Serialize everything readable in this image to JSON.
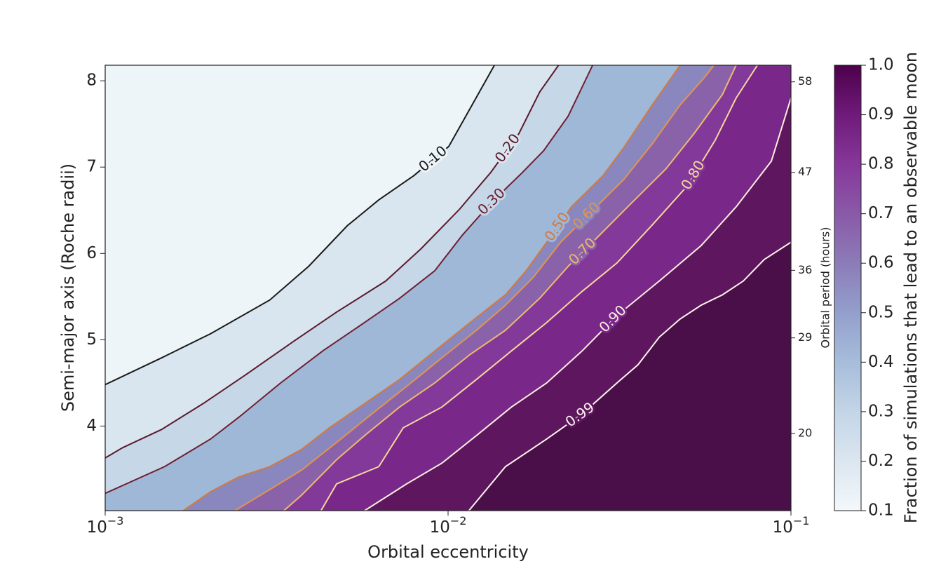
{
  "chart_data": {
    "type": "contour",
    "x_label": "Orbital eccentricity",
    "y_label": "Semi-major axis (Roche radii)",
    "y2_label": "Orbital period (hours)",
    "colorbar_label": "Fraction of simulations that lead to an observable moon",
    "xscale": "log",
    "xlim": [
      0.001,
      0.1
    ],
    "xticks": [
      {
        "value": 0.001,
        "label": "10",
        "exponent": "−3"
      },
      {
        "value": 0.01,
        "label": "10",
        "exponent": "−2"
      },
      {
        "value": 0.1,
        "label": "10",
        "exponent": "−1"
      }
    ],
    "ylim": [
      3.02,
      8.18
    ],
    "yticks": [
      4,
      5,
      6,
      7,
      8
    ],
    "y2scale_exponent": 1.5,
    "y2lim": [
      13.6,
      60.1
    ],
    "y2ticks": [
      20,
      29,
      36,
      47,
      58
    ],
    "colorbar_lim": [
      0.1,
      1
    ],
    "colorbar_ticks": [
      0.1,
      0.2,
      0.3,
      0.4,
      0.5,
      0.6,
      0.7,
      0.8,
      0.9,
      {
        "value": 1,
        "label": "1.0"
      }
    ],
    "colormap": [
      "#f3f8fb",
      "#dbe6f0",
      "#c3d5e7",
      "#a6bddb",
      "#939fcc",
      "#8c7cb8",
      "#8a59a8",
      "#86379a",
      "#6f1b7a",
      "#4d004b"
    ],
    "fill_colors": [
      "#eef5f9",
      "#dae6ef",
      "#c6d7e8",
      "#a0b8d8",
      "#8a87bf",
      "#8a62aa",
      "#82399a",
      "#79288a",
      "#5e175e",
      "#4a0e48"
    ],
    "series": [
      {
        "name": "0.10",
        "color": "#1a1a1a",
        "x": [
          0.001,
          0.00146,
          0.00203,
          0.00302,
          0.00392,
          0.00508,
          0.00628,
          0.00794,
          0.01005,
          0.01365
        ],
        "y": [
          4.48,
          4.79,
          5.07,
          5.46,
          5.85,
          6.32,
          6.62,
          6.9,
          7.24,
          8.18
        ]
      },
      {
        "name": "0.20",
        "color": "#5a1a2a",
        "x": [
          0.001,
          0.001125,
          0.00146,
          0.00193,
          0.00256,
          0.00357,
          0.00473,
          0.00658,
          0.00832,
          0.01079,
          0.01333,
          0.0161,
          0.0185,
          0.021
        ],
        "y": [
          3.63,
          3.75,
          3.96,
          4.26,
          4.59,
          4.99,
          5.32,
          5.68,
          6.05,
          6.51,
          6.94,
          7.39,
          7.87,
          8.18
        ]
      },
      {
        "name": "0.30",
        "color": "#6e1f2f",
        "x": [
          0.001,
          0.00149,
          0.00203,
          0.00245,
          0.00325,
          0.00431,
          0.00571,
          0.00722,
          0.00915,
          0.011,
          0.0133,
          0.0165,
          0.019,
          0.0224,
          0.0264
        ],
        "y": [
          3.22,
          3.53,
          3.85,
          4.1,
          4.5,
          4.87,
          5.2,
          5.48,
          5.8,
          6.21,
          6.58,
          6.94,
          7.19,
          7.59,
          8.18
        ]
      },
      {
        "name": "0.50",
        "color": "#d2793e",
        "x": [
          0.00169,
          0.00203,
          0.00245,
          0.00302,
          0.00374,
          0.00451,
          0.00571,
          0.00722,
          0.00915,
          0.0116,
          0.0147,
          0.0169,
          0.0204,
          0.0229,
          0.0283,
          0.0326,
          0.0394,
          0.0475
        ],
        "y": [
          3.02,
          3.24,
          3.41,
          3.53,
          3.73,
          3.98,
          4.26,
          4.54,
          4.87,
          5.2,
          5.52,
          5.8,
          6.25,
          6.54,
          6.9,
          7.23,
          7.72,
          8.18
        ]
      },
      {
        "name": "0.60",
        "color": "#e39450",
        "x": [
          0.00239,
          0.00295,
          0.00374,
          0.00473,
          0.00599,
          0.00757,
          0.00959,
          0.0121,
          0.0147,
          0.0177,
          0.0213,
          0.0258,
          0.0326,
          0.0394,
          0.0475,
          0.056,
          0.0596
        ],
        "y": [
          3.02,
          3.24,
          3.49,
          3.81,
          4.14,
          4.46,
          4.79,
          5.11,
          5.4,
          5.72,
          6.13,
          6.46,
          6.86,
          7.27,
          7.72,
          8.04,
          8.18
        ]
      },
      {
        "name": "0.70",
        "color": "#f0b870",
        "x": [
          0.00332,
          0.00374,
          0.00473,
          0.00571,
          0.00722,
          0.00915,
          0.0116,
          0.0147,
          0.0185,
          0.0224,
          0.027,
          0.0342,
          0.0432,
          0.0522,
          0.0631,
          0.0692
        ],
        "y": [
          3.02,
          3.2,
          3.61,
          3.89,
          4.22,
          4.5,
          4.83,
          5.11,
          5.48,
          5.85,
          6.17,
          6.58,
          6.98,
          7.39,
          7.84,
          8.18
        ]
      },
      {
        "name": "0.80",
        "color": "#f7d79a",
        "x": [
          0.00426,
          0.00473,
          0.00628,
          0.0074,
          0.00959,
          0.0121,
          0.0153,
          0.0194,
          0.0246,
          0.0311,
          0.0394,
          0.0498,
          0.0601,
          0.0692,
          0.0798
        ],
        "y": [
          3.02,
          3.33,
          3.53,
          3.98,
          4.22,
          4.54,
          4.87,
          5.2,
          5.56,
          5.89,
          6.33,
          6.78,
          7.31,
          7.8,
          8.18
        ]
      },
      {
        "name": "0.90",
        "color": "#fbeedf",
        "x": [
          0.00571,
          0.00757,
          0.00959,
          0.0121,
          0.0153,
          0.0194,
          0.0246,
          0.0311,
          0.0413,
          0.0547,
          0.0692,
          0.0877,
          0.1
        ],
        "y": [
          3.02,
          3.33,
          3.57,
          3.89,
          4.22,
          4.5,
          4.87,
          5.28,
          5.68,
          6.09,
          6.54,
          7.07,
          7.8
        ]
      },
      {
        "name": "0.99",
        "color": "#fdf5f0",
        "x": [
          0.0115,
          0.0147,
          0.0194,
          0.0246,
          0.0311,
          0.0358,
          0.0413,
          0.0475,
          0.0547,
          0.0631,
          0.0726,
          0.0836,
          0.1
        ],
        "y": [
          3.02,
          3.53,
          3.85,
          4.14,
          4.5,
          4.71,
          5.03,
          5.24,
          5.4,
          5.52,
          5.68,
          5.93,
          6.13
        ]
      }
    ]
  }
}
